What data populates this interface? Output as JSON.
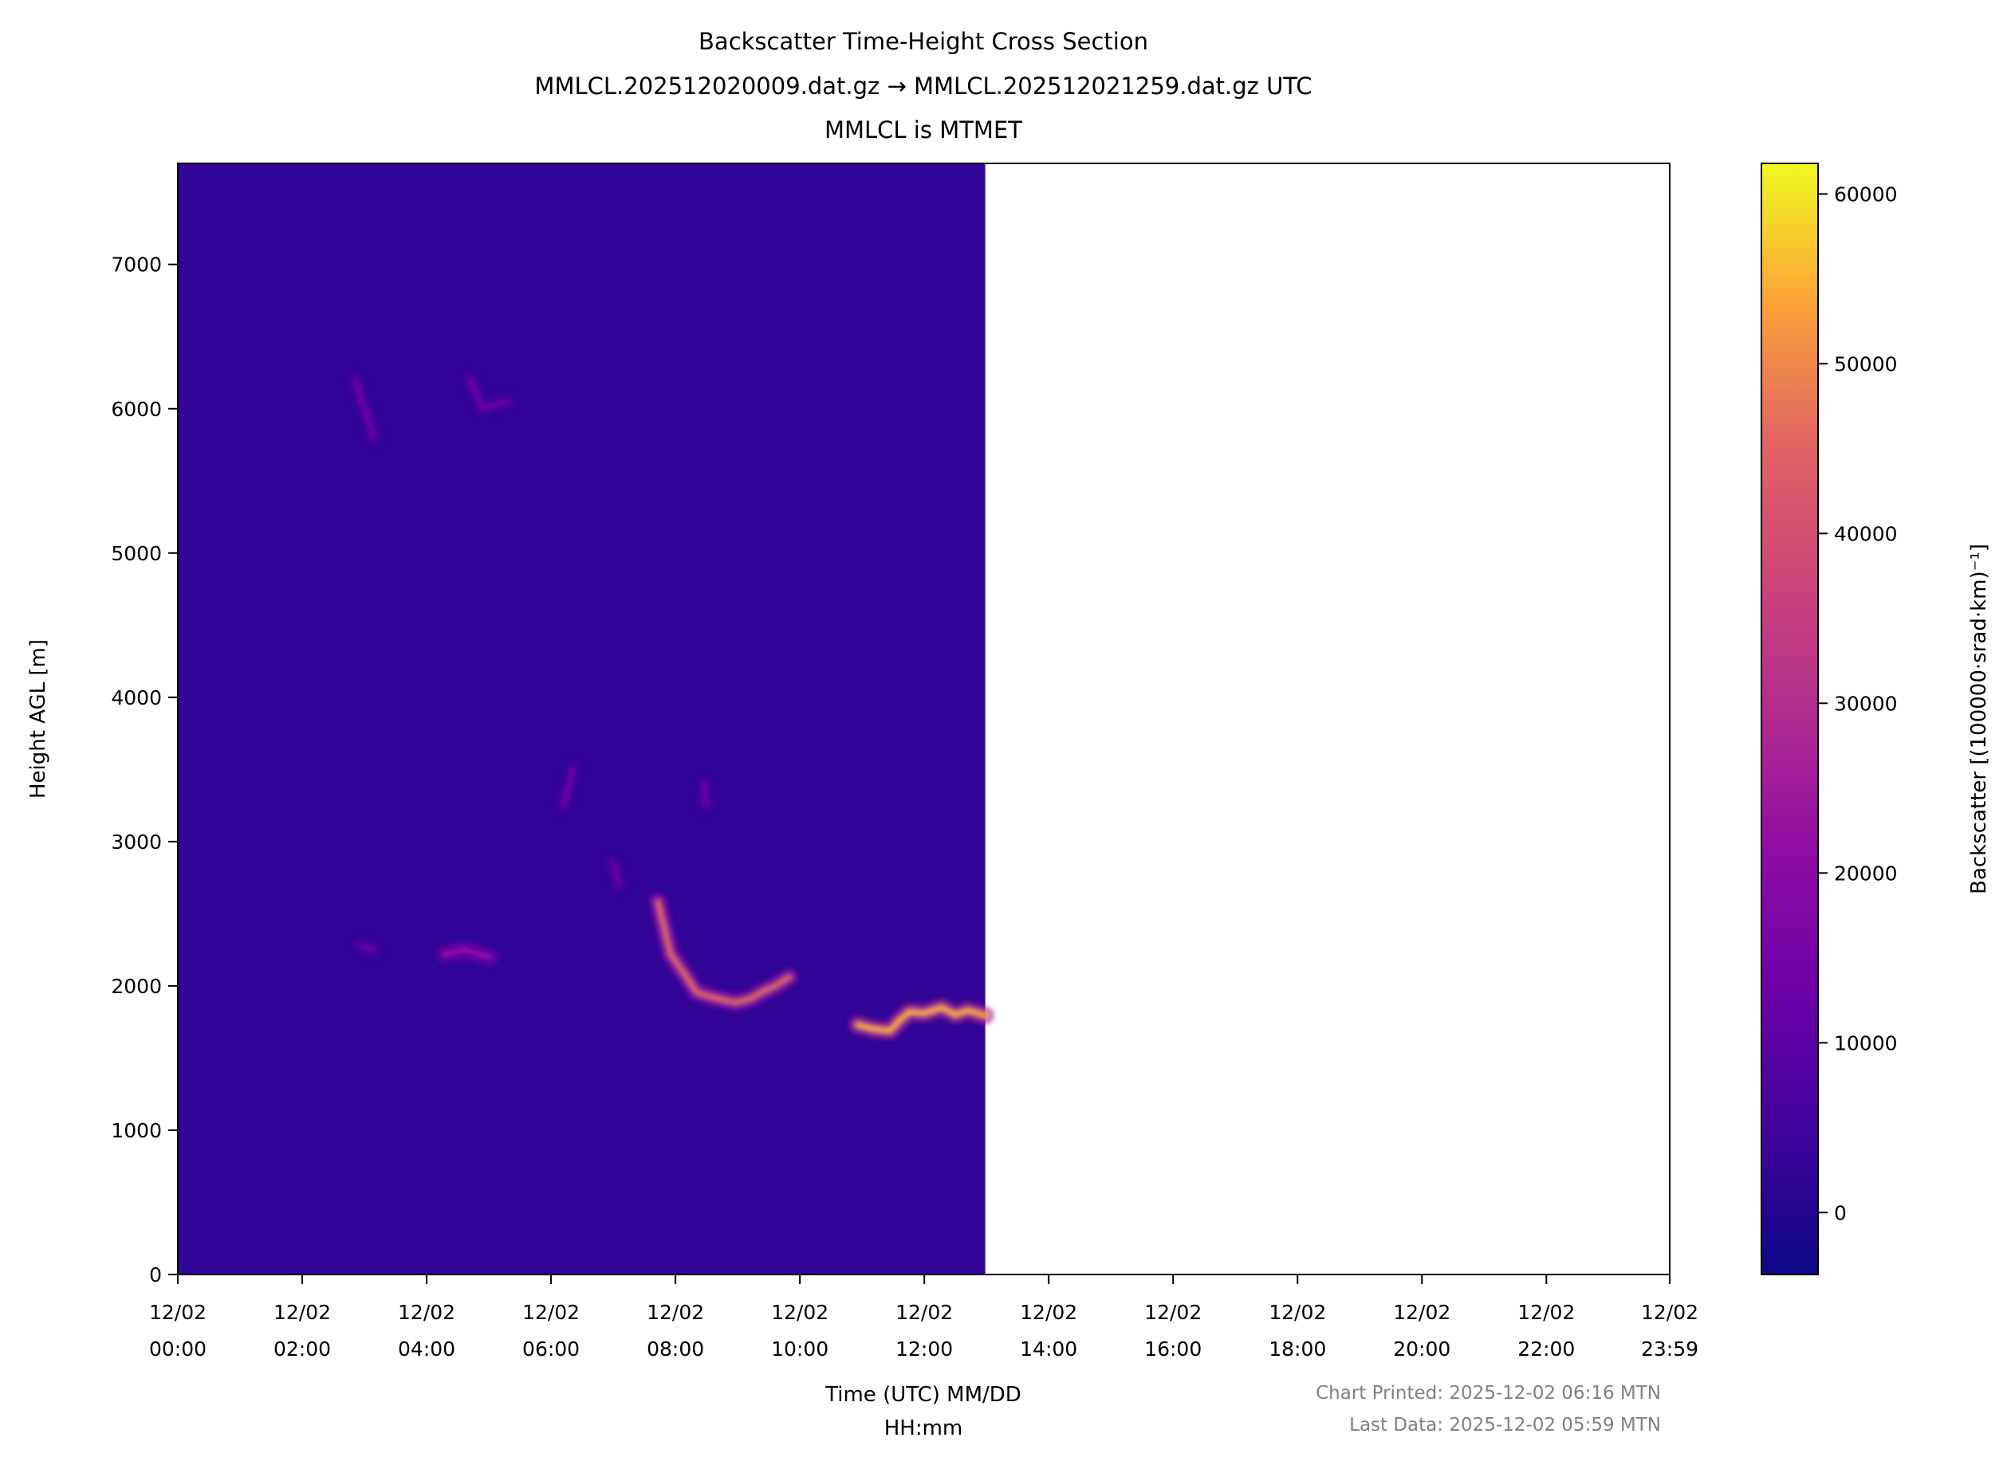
{
  "chart_data": {
    "type": "heatmap",
    "title": [
      "Backscatter Time-Height Cross Section",
      "MMLCL.202512020009.dat.gz → MMLCL.202512021259.dat.gz UTC",
      "MMLCL is MTMET"
    ],
    "xlabel": [
      "Time (UTC) MM/DD",
      "HH:mm"
    ],
    "ylabel": "Height AGL [m]",
    "colorbar_label": "Backscatter [(100000·srad·km)⁻¹]",
    "colormap": "plasma",
    "xlim_hours": [
      0,
      23.983
    ],
    "ylim": [
      0,
      7700
    ],
    "clim": [
      -3650,
      61800
    ],
    "data_extent_hours": [
      0,
      12.98
    ],
    "background_value": 0,
    "x_ticks": [
      {
        "hour": 0,
        "date": "12/02",
        "time": "00:00"
      },
      {
        "hour": 2,
        "date": "12/02",
        "time": "02:00"
      },
      {
        "hour": 4,
        "date": "12/02",
        "time": "04:00"
      },
      {
        "hour": 6,
        "date": "12/02",
        "time": "06:00"
      },
      {
        "hour": 8,
        "date": "12/02",
        "time": "08:00"
      },
      {
        "hour": 10,
        "date": "12/02",
        "time": "10:00"
      },
      {
        "hour": 12,
        "date": "12/02",
        "time": "12:00"
      },
      {
        "hour": 14,
        "date": "12/02",
        "time": "14:00"
      },
      {
        "hour": 16,
        "date": "12/02",
        "time": "16:00"
      },
      {
        "hour": 18,
        "date": "12/02",
        "time": "18:00"
      },
      {
        "hour": 20,
        "date": "12/02",
        "time": "20:00"
      },
      {
        "hour": 22,
        "date": "12/02",
        "time": "22:00"
      },
      {
        "hour": 23.983,
        "date": "12/02",
        "time": "23:59"
      }
    ],
    "y_ticks": [
      "0",
      "1000",
      "2000",
      "3000",
      "4000",
      "5000",
      "6000",
      "7000"
    ],
    "colorbar_ticks": [
      "0",
      "10000",
      "20000",
      "30000",
      "40000",
      "50000",
      "60000"
    ],
    "features": [
      {
        "name": "cloud-layer-morning",
        "value": 45000,
        "points": [
          [
            7.72,
            2580
          ],
          [
            7.92,
            2220
          ],
          [
            8.15,
            2080
          ],
          [
            8.34,
            1955
          ],
          [
            8.6,
            1920
          ],
          [
            8.96,
            1885
          ],
          [
            9.2,
            1910
          ],
          [
            9.38,
            1955
          ],
          [
            9.6,
            2000
          ],
          [
            9.83,
            2060
          ]
        ]
      },
      {
        "name": "cloud-layer-late",
        "value": 50000,
        "points": [
          [
            10.93,
            1730
          ],
          [
            11.2,
            1700
          ],
          [
            11.45,
            1690
          ],
          [
            11.6,
            1760
          ],
          [
            11.76,
            1820
          ],
          [
            12.0,
            1810
          ],
          [
            12.28,
            1850
          ],
          [
            12.5,
            1800
          ],
          [
            12.7,
            1830
          ],
          [
            12.98,
            1795
          ]
        ]
      },
      {
        "name": "patch-2200m",
        "value": 18000,
        "points": [
          [
            4.29,
            2220
          ],
          [
            4.6,
            2250
          ],
          [
            5.02,
            2200
          ]
        ]
      },
      {
        "name": "patch-2270m",
        "value": 10000,
        "points": [
          [
            2.95,
            2280
          ],
          [
            3.15,
            2250
          ]
        ]
      },
      {
        "name": "patch-6000m-a",
        "value": 12000,
        "points": [
          [
            2.85,
            6200
          ],
          [
            3.0,
            6000
          ],
          [
            3.15,
            5800
          ]
        ]
      },
      {
        "name": "patch-6000m-b",
        "value": 10000,
        "points": [
          [
            4.7,
            6200
          ],
          [
            4.9,
            6000
          ],
          [
            5.3,
            6050
          ]
        ]
      },
      {
        "name": "patch-3300m",
        "value": 12000,
        "points": [
          [
            6.2,
            3250
          ],
          [
            6.35,
            3500
          ]
        ]
      },
      {
        "name": "patch-2750m",
        "value": 10000,
        "points": [
          [
            7.0,
            2850
          ],
          [
            7.1,
            2700
          ]
        ]
      },
      {
        "name": "patch-3350m",
        "value": 9000,
        "points": [
          [
            8.45,
            3400
          ],
          [
            8.5,
            3250
          ]
        ]
      }
    ]
  },
  "footer": {
    "printed": "Chart Printed: 2025-12-02 06:16 MTN",
    "last_data": "Last Data: 2025-12-02 05:59 MTN"
  }
}
